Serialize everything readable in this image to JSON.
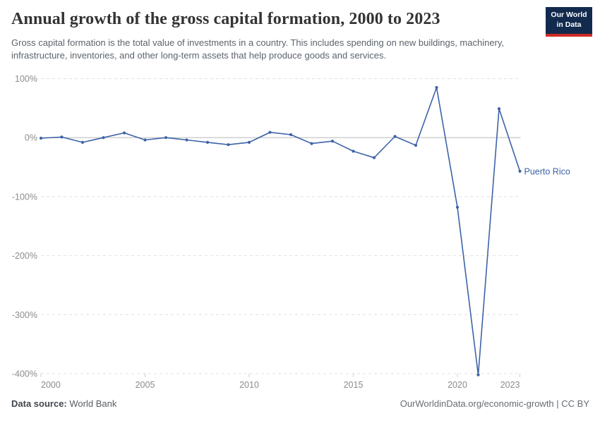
{
  "header": {
    "title": "Annual growth of the gross capital formation, 2000 to 2023",
    "subtitle": "Gross capital formation is the total value of investments in a country. This includes spending on new buildings, machinery, infrastructure, inventories, and other long-term assets that help produce goods and services.",
    "logo": {
      "line1": "Our World",
      "line2": "in Data",
      "bg_color": "#122a4e",
      "accent_color": "#cd2d23"
    }
  },
  "chart_data": {
    "type": "line",
    "title": "Annual growth of the gross capital formation, 2000 to 2023",
    "xlabel": "",
    "ylabel": "",
    "xlim": [
      2000,
      2023
    ],
    "ylim": [
      -400,
      100
    ],
    "grid": "horizontal-dashed",
    "zero_line": true,
    "legend_position": "end-of-line-label",
    "x_ticks": [
      2000,
      2005,
      2010,
      2015,
      2020,
      2023
    ],
    "x_tick_labels": [
      "2000",
      "2005",
      "2010",
      "2015",
      "2020",
      "2023"
    ],
    "y_ticks": [
      100,
      0,
      -100,
      -200,
      -300,
      -400
    ],
    "y_tick_labels": [
      "100%",
      "0%",
      "-100%",
      "-200%",
      "-300%",
      "-400%"
    ],
    "x": [
      2000,
      2001,
      2002,
      2003,
      2004,
      2005,
      2006,
      2007,
      2008,
      2009,
      2010,
      2011,
      2012,
      2013,
      2014,
      2015,
      2016,
      2017,
      2018,
      2019,
      2020,
      2021,
      2022,
      2023
    ],
    "series": [
      {
        "name": "Puerto Rico",
        "color": "#3d63a8",
        "values": [
          -1,
          1,
          -8,
          0,
          8,
          -4,
          0,
          -4,
          -8,
          -12,
          -8,
          9,
          5,
          -10,
          -6,
          -23,
          -34,
          2,
          -13,
          85,
          -118,
          -402,
          49,
          -57
        ]
      }
    ]
  },
  "footer": {
    "source_label": "Data source:",
    "source_value": "World Bank",
    "attribution": "OurWorldinData.org/economic-growth | CC BY"
  }
}
